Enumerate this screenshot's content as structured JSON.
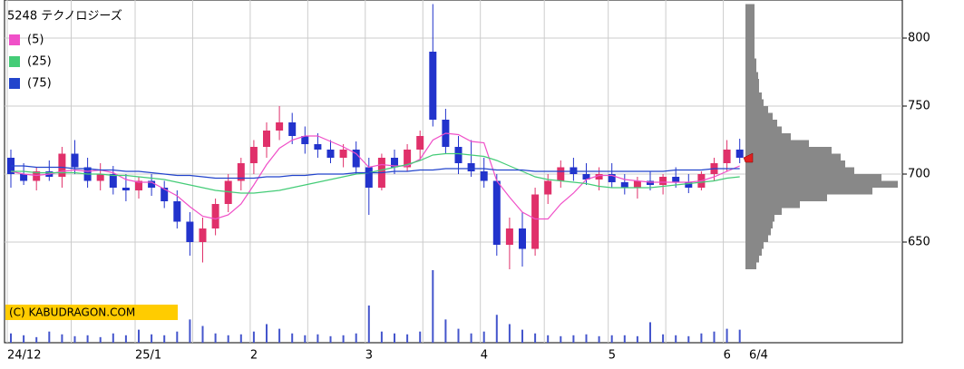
{
  "chart_data": {
    "type": "candlestick",
    "title": "5248 テクノロジーズ",
    "copyright": "(C) KABUDRAGON.COM",
    "date_label": "6/4",
    "categories": [
      "24/12",
      null,
      null,
      null,
      null,
      null,
      null,
      null,
      null,
      null,
      "25/1",
      null,
      null,
      null,
      null,
      null,
      null,
      null,
      null,
      "2",
      null,
      null,
      null,
      null,
      null,
      null,
      null,
      null,
      "3",
      null,
      null,
      null,
      null,
      null,
      null,
      null,
      null,
      "4",
      null,
      null,
      null,
      null,
      null,
      null,
      null,
      null,
      null,
      "5",
      null,
      null,
      null,
      null,
      null,
      null,
      null,
      null,
      "6",
      null
    ],
    "open": [
      712,
      700,
      695,
      702,
      698,
      715,
      705,
      695,
      700,
      690,
      688,
      695,
      690,
      680,
      665,
      650,
      660,
      678,
      695,
      708,
      720,
      732,
      738,
      728,
      722,
      718,
      712,
      718,
      705,
      690,
      712,
      705,
      718,
      790,
      740,
      720,
      708,
      702,
      695,
      648,
      660,
      645,
      685,
      695,
      705,
      700,
      696,
      700,
      694,
      690,
      695,
      692,
      698,
      694,
      690,
      700,
      708,
      718
    ],
    "high": [
      718,
      708,
      705,
      710,
      720,
      725,
      712,
      708,
      706,
      700,
      698,
      700,
      695,
      688,
      672,
      668,
      682,
      700,
      712,
      725,
      738,
      750,
      745,
      735,
      730,
      725,
      722,
      724,
      712,
      715,
      718,
      722,
      732,
      825,
      748,
      728,
      725,
      712,
      700,
      668,
      672,
      690,
      700,
      710,
      712,
      708,
      705,
      708,
      700,
      698,
      702,
      700,
      705,
      700,
      702,
      712,
      725,
      726
    ],
    "low": [
      690,
      692,
      688,
      695,
      690,
      700,
      690,
      688,
      685,
      680,
      682,
      684,
      675,
      660,
      640,
      635,
      655,
      672,
      688,
      700,
      712,
      725,
      722,
      715,
      712,
      708,
      705,
      700,
      670,
      688,
      700,
      702,
      710,
      735,
      715,
      700,
      698,
      690,
      640,
      630,
      632,
      640,
      678,
      690,
      695,
      692,
      688,
      690,
      685,
      682,
      688,
      685,
      690,
      686,
      688,
      695,
      702,
      708
    ],
    "close": [
      700,
      695,
      702,
      698,
      715,
      705,
      695,
      700,
      690,
      688,
      695,
      690,
      680,
      665,
      650,
      660,
      678,
      695,
      708,
      720,
      732,
      738,
      728,
      722,
      718,
      712,
      718,
      705,
      690,
      712,
      705,
      718,
      728,
      740,
      720,
      708,
      702,
      695,
      648,
      660,
      645,
      685,
      695,
      705,
      700,
      696,
      700,
      694,
      690,
      695,
      692,
      698,
      694,
      690,
      700,
      708,
      718,
      712
    ],
    "volume": [
      10,
      8,
      6,
      12,
      9,
      7,
      8,
      6,
      10,
      8,
      14,
      9,
      8,
      12,
      25,
      18,
      10,
      8,
      9,
      12,
      20,
      15,
      10,
      8,
      9,
      7,
      8,
      10,
      40,
      12,
      10,
      9,
      12,
      78,
      25,
      15,
      10,
      12,
      30,
      20,
      14,
      10,
      8,
      7,
      8,
      9,
      7,
      8,
      8,
      7,
      22,
      9,
      8,
      7,
      10,
      12,
      15,
      14
    ],
    "up_color": "#e0306a",
    "down_color": "#2233cc",
    "volume_color": "#4455cc",
    "series": [
      {
        "name": "(5)",
        "color": "#f050c8",
        "values": [
          702,
          700,
          699,
          700,
          702,
          703,
          702,
          703,
          701,
          696,
          694,
          694,
          689,
          684,
          676,
          669,
          667,
          670,
          678,
          692,
          707,
          719,
          725,
          728,
          728,
          724,
          720,
          715,
          705,
          707,
          706,
          706,
          711,
          725,
          730,
          729,
          724,
          723,
          695,
          683,
          672,
          667,
          667,
          678,
          686,
          696,
          699,
          699,
          696,
          695,
          694,
          694,
          694,
          694,
          695,
          698,
          702,
          706
        ]
      },
      {
        "name": "(25)",
        "color": "#44cc77",
        "values": [
          702,
          702,
          701,
          701,
          701,
          701,
          700,
          700,
          699,
          699,
          698,
          697,
          696,
          694,
          692,
          690,
          688,
          687,
          686,
          686,
          687,
          688,
          690,
          692,
          694,
          696,
          698,
          700,
          701,
          703,
          705,
          707,
          710,
          714,
          715,
          715,
          714,
          713,
          710,
          706,
          702,
          698,
          696,
          695,
          694,
          693,
          691,
          690,
          690,
          690,
          690,
          691,
          692,
          693,
          694,
          695,
          697,
          698
        ]
      },
      {
        "name": "(75)",
        "color": "#2244cc",
        "values": [
          706,
          706,
          705,
          705,
          705,
          704,
          704,
          703,
          703,
          702,
          702,
          701,
          700,
          699,
          699,
          698,
          697,
          697,
          697,
          697,
          698,
          698,
          699,
          699,
          700,
          700,
          700,
          701,
          701,
          701,
          702,
          702,
          703,
          703,
          704,
          704,
          704,
          704,
          703,
          703,
          703,
          702,
          702,
          702,
          702,
          702,
          702,
          702,
          702,
          702,
          702,
          702,
          703,
          703,
          703,
          704,
          704,
          704
        ]
      }
    ],
    "profile": {
      "color": "#888888",
      "bins": [
        630,
        635,
        640,
        645,
        650,
        655,
        660,
        665,
        670,
        675,
        680,
        685,
        690,
        695,
        700,
        705,
        710,
        715,
        720,
        725,
        730,
        735,
        740,
        745,
        750,
        755,
        760,
        765,
        770,
        775,
        780,
        785,
        790,
        795,
        800,
        805,
        810,
        815,
        820,
        825
      ],
      "counts": [
        12,
        15,
        18,
        20,
        25,
        28,
        30,
        32,
        40,
        60,
        90,
        140,
        168,
        150,
        120,
        110,
        105,
        95,
        70,
        50,
        40,
        35,
        30,
        25,
        20,
        18,
        15,
        15,
        14,
        12,
        12,
        10,
        10,
        10,
        10,
        10,
        10,
        10,
        10
      ]
    },
    "ylim": [
      576,
      828
    ],
    "yticks": [
      650,
      700,
      750,
      800
    ],
    "grid": true
  }
}
